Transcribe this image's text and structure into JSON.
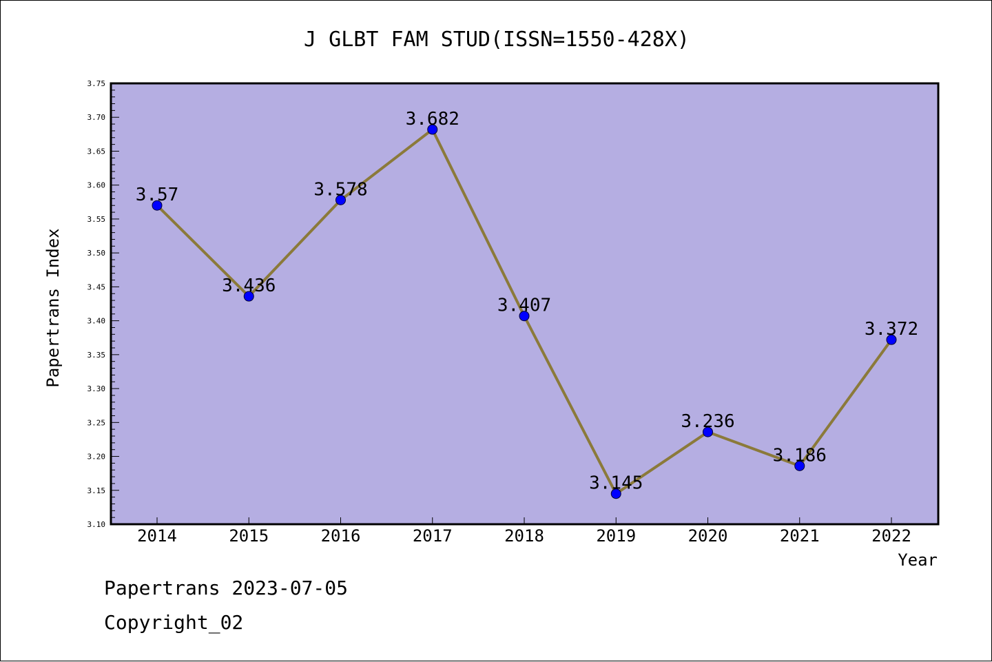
{
  "colors": {
    "plot_background": "#b5aee2",
    "line": "#8b7a3a",
    "marker": "#0000ff",
    "text": "#000000"
  },
  "footer": {
    "generated": "Papertrans 2023-07-05",
    "copyright": "Copyright_02"
  },
  "chart_data": {
    "type": "line",
    "title": "J GLBT FAM STUD(ISSN=1550-428X)",
    "xlabel": "Year",
    "ylabel": "Papertrans Index",
    "categories": [
      "2014",
      "2015",
      "2016",
      "2017",
      "2018",
      "2019",
      "2020",
      "2021",
      "2022"
    ],
    "series": [
      {
        "values": [
          3.57,
          3.436,
          3.578,
          3.682,
          3.407,
          3.145,
          3.236,
          3.186,
          3.372
        ],
        "labels": [
          "3.57",
          "3.436",
          "3.578",
          "3.682",
          "3.407",
          "3.145",
          "3.236",
          "3.186",
          "3.372"
        ]
      }
    ],
    "ylim": [
      3.1,
      3.75
    ],
    "yticks": [
      "3.10",
      "3.15",
      "3.20",
      "3.25",
      "3.30",
      "3.35",
      "3.40",
      "3.45",
      "3.50",
      "3.55",
      "3.60",
      "3.65",
      "3.70",
      "3.75"
    ],
    "grid": false,
    "legend": "none"
  }
}
